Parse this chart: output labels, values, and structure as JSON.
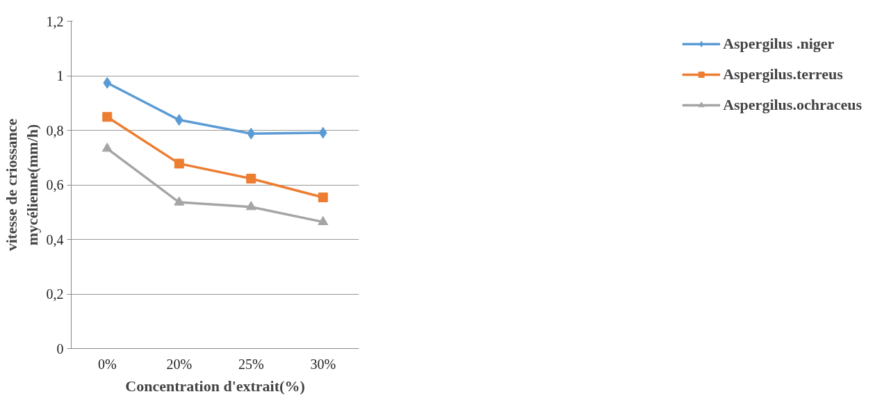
{
  "chart_data": {
    "type": "line",
    "xlabel": "Concentration d'extrait(%)",
    "ylabel": "vitesse de criossance\nmycélienne(mm/h)",
    "categories": [
      "0%",
      "20%",
      "25%",
      "30%"
    ],
    "series": [
      {
        "name": "Aspergilus .niger",
        "color": "#5b9bd5",
        "marker": "diamond",
        "values": [
          0.974,
          0.838,
          0.788,
          0.791
        ]
      },
      {
        "name": "Aspergilus.terreus",
        "color": "#ed7d31",
        "marker": "square",
        "values": [
          0.849,
          0.678,
          0.623,
          0.554
        ]
      },
      {
        "name": "Aspergilus.ochraceus",
        "color": "#a5a5a5",
        "marker": "triangle",
        "values": [
          0.733,
          0.536,
          0.519,
          0.464
        ]
      }
    ],
    "ylim": [
      0,
      1.2
    ],
    "yticks": [
      0,
      {
        "value": 0.2,
        "label": "0,2"
      },
      {
        "value": 0.4,
        "label": "0,4"
      },
      {
        "value": 0.6,
        "label": "0,6"
      },
      {
        "value": 0.8,
        "label": "0,8"
      },
      1,
      {
        "value": 1.2,
        "label": "1,2"
      }
    ],
    "grid": "y",
    "legend": "right",
    "line_style": "solid"
  }
}
